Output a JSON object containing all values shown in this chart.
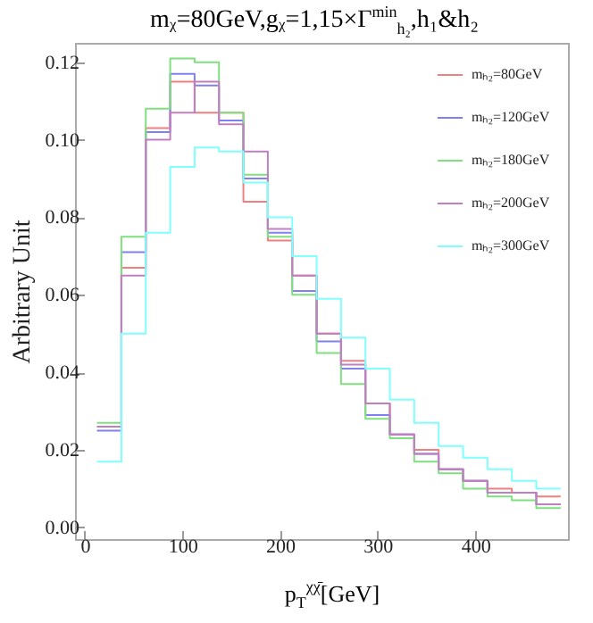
{
  "chart_data": {
    "type": "histogram",
    "title": "mᵪ=80GeV,gᵪ=1,15×Γ$^{min}$$_{h₂}$,h₁&h₂",
    "xlabel": "p$_{T}$$^{χχ̄}$[GeV]",
    "ylabel": "Arbitrary Unit",
    "bins": [
      12.5,
      37.5,
      62.5,
      87.5,
      112.5,
      137.5,
      162.5,
      187.5,
      212.5,
      237.5,
      262.5,
      287.5,
      312.5,
      337.5,
      362.5,
      387.5,
      412.5,
      437.5,
      462.5,
      487.5
    ],
    "series": [
      {
        "name": "mₕ₂=80GeV",
        "color": "#f08080",
        "values": [
          0.026,
          0.067,
          0.103,
          0.115,
          0.107,
          0.107,
          0.084,
          0.074,
          0.065,
          0.05,
          0.043,
          0.032,
          0.024,
          0.02,
          0.015,
          0.012,
          0.01,
          0.009,
          0.008
        ]
      },
      {
        "name": "mₕ₂=120GeV",
        "color": "#8080f0",
        "values": [
          0.025,
          0.071,
          0.102,
          0.117,
          0.114,
          0.105,
          0.09,
          0.076,
          0.061,
          0.048,
          0.041,
          0.029,
          0.024,
          0.019,
          0.015,
          0.012,
          0.009,
          0.009,
          0.006
        ]
      },
      {
        "name": "mₕ₂=180GeV",
        "color": "#80e080",
        "values": [
          0.027,
          0.075,
          0.108,
          0.121,
          0.12,
          0.107,
          0.091,
          0.075,
          0.06,
          0.045,
          0.037,
          0.028,
          0.023,
          0.017,
          0.014,
          0.01,
          0.008,
          0.007,
          0.005
        ]
      },
      {
        "name": "mₕ₂=200GeV",
        "color": "#c080c0",
        "values": [
          0.026,
          0.065,
          0.1,
          0.107,
          0.115,
          0.104,
          0.097,
          0.077,
          0.065,
          0.05,
          0.042,
          0.032,
          0.024,
          0.019,
          0.015,
          0.012,
          0.009,
          0.009,
          0.006
        ]
      },
      {
        "name": "mₕ₂=300GeV",
        "color": "#80ffff",
        "values": [
          0.017,
          0.05,
          0.076,
          0.093,
          0.098,
          0.097,
          0.089,
          0.08,
          0.07,
          0.059,
          0.049,
          0.041,
          0.033,
          0.027,
          0.021,
          0.018,
          0.015,
          0.012,
          0.01
        ]
      }
    ],
    "xlim": [
      -10,
      495
    ],
    "xticks": [
      0,
      100,
      200,
      300,
      400
    ],
    "ylim": [
      -0.003,
      0.125
    ],
    "yticks": [
      {
        "value": 0,
        "label": "0.00"
      },
      {
        "value": 0.02,
        "label": "0.02"
      },
      {
        "value": 0.04,
        "label": "0.04"
      },
      {
        "value": 0.06,
        "label": "0.06"
      },
      {
        "value": 0.08,
        "label": "0.08"
      },
      {
        "value": 0.1,
        "label": "0.10"
      },
      {
        "value": 0.12,
        "label": "0.12"
      }
    ],
    "legend": "top right"
  }
}
